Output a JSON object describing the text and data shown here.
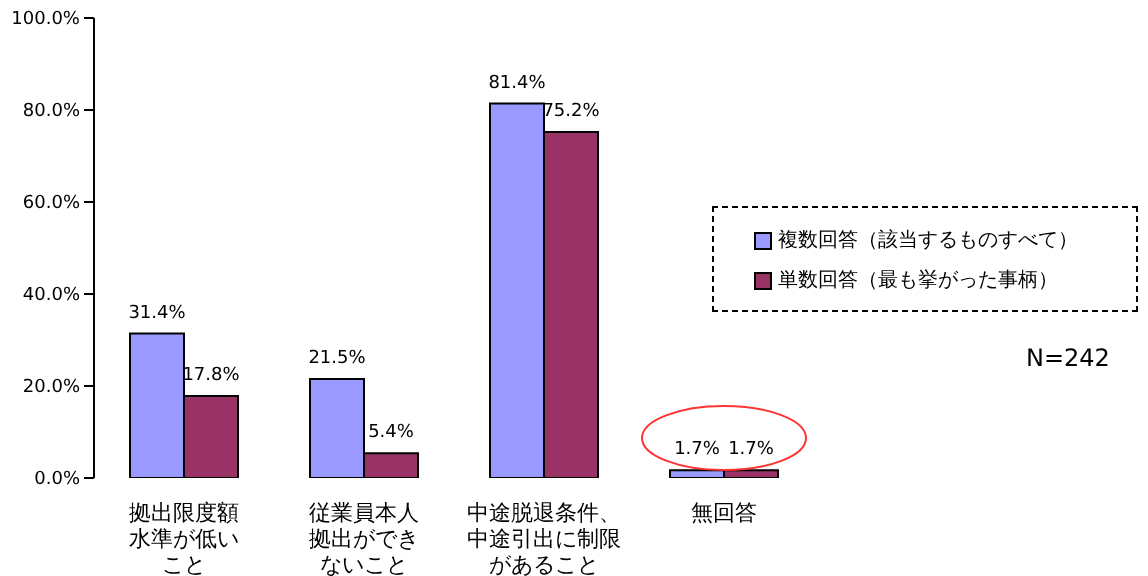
{
  "chart_data": {
    "type": "bar",
    "categories": [
      "拠出限度額水準が低いこと",
      "従業員本人拠出ができないこと",
      "中途脱退条件、中途引出に制限があること",
      "無回答"
    ],
    "series": [
      {
        "name": "複数回答（該当するものすべて）",
        "color": "#9999ff",
        "values": [
          31.4,
          21.5,
          81.4,
          1.7
        ],
        "value_labels": [
          "31.4%",
          "21.5%",
          "81.4%",
          "1.7%"
        ]
      },
      {
        "name": "単数回答（最も挙がった事柄）",
        "color": "#993366",
        "values": [
          17.8,
          5.4,
          75.2,
          1.7
        ],
        "value_labels": [
          "17.8%",
          "5.4%",
          "75.2%",
          "1.7%"
        ]
      }
    ],
    "ylim": [
      0,
      100
    ],
    "yticks": [
      {
        "value": 0,
        "label": "0.0%"
      },
      {
        "value": 20,
        "label": "20.0%"
      },
      {
        "value": 40,
        "label": "40.0%"
      },
      {
        "value": 60,
        "label": "60.0%"
      },
      {
        "value": 80,
        "label": "80.0%"
      },
      {
        "value": 100,
        "label": "100.0%"
      }
    ],
    "grid": false,
    "legend": "right",
    "annotations": [
      "N=242"
    ]
  }
}
